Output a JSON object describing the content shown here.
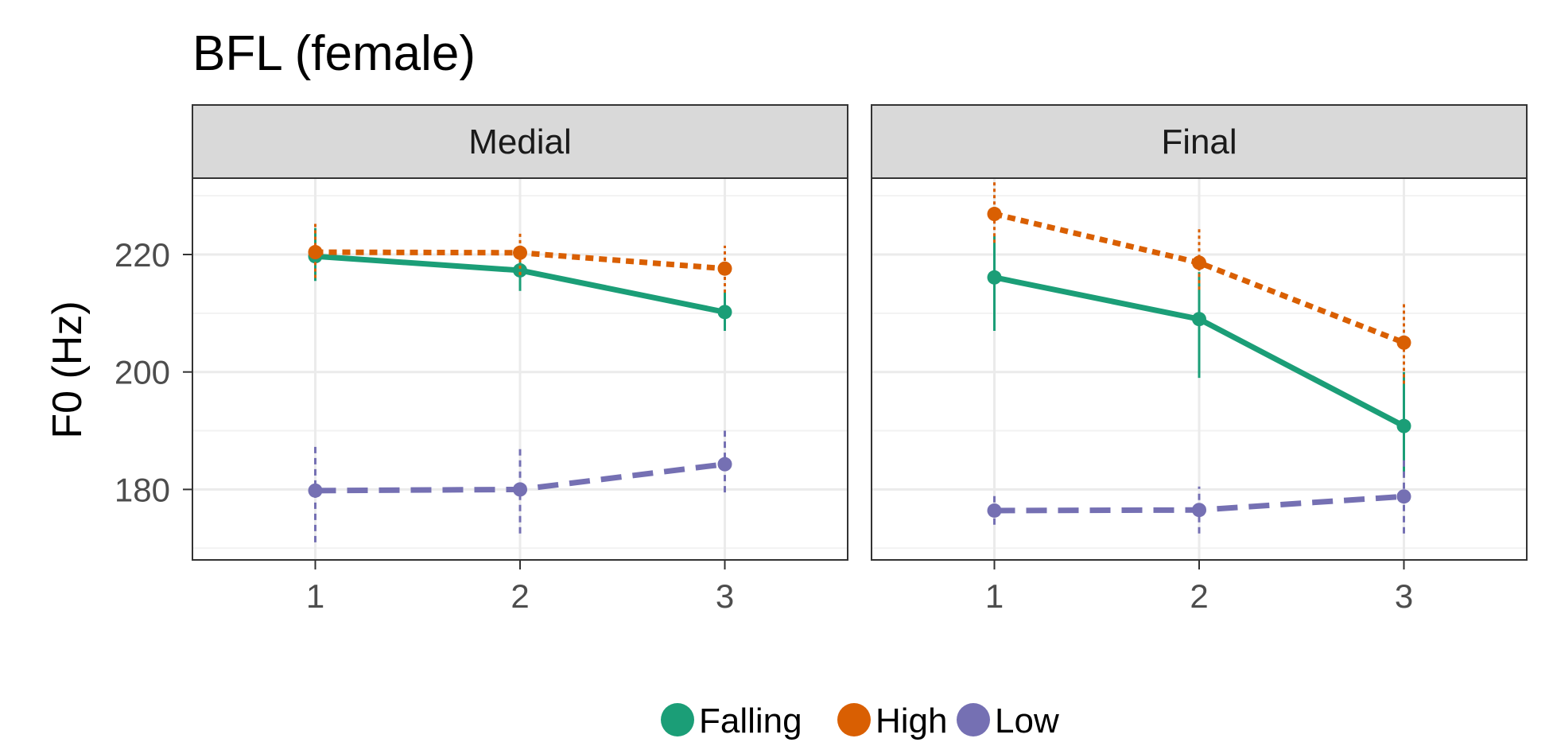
{
  "chart_data": {
    "type": "line",
    "title": "BFL (female)",
    "xlabel": "",
    "ylabel": "F0 (Hz)",
    "x": [
      1,
      2,
      3
    ],
    "x_tick_labels": [
      "1",
      "2",
      "3"
    ],
    "xlim": [
      0.4,
      3.6
    ],
    "ylim": [
      168,
      233
    ],
    "y_ticks": [
      180,
      200,
      220
    ],
    "y_tick_labels": [
      "180",
      "200",
      "220"
    ],
    "grid": true,
    "legend_position": "bottom",
    "series_meta": [
      {
        "name": "Falling",
        "color": "#1b9e77",
        "dash": "solid"
      },
      {
        "name": "High",
        "color": "#d95f02",
        "dash": "dotted"
      },
      {
        "name": "Low",
        "color": "#7570b3",
        "dash": "dashed"
      }
    ],
    "panels": [
      {
        "name": "Medial",
        "series": [
          {
            "name": "Falling",
            "values": [
              219.7,
              217.3,
              210.2
            ],
            "err_low": [
              215.5,
              213.8,
              207.0
            ],
            "err_high": [
              224.5,
              221.0,
              213.5
            ]
          },
          {
            "name": "High",
            "values": [
              220.4,
              220.3,
              217.6
            ],
            "err_low": [
              216.0,
              216.5,
              213.5
            ],
            "err_high": [
              225.5,
              224.0,
              221.5
            ]
          },
          {
            "name": "Low",
            "values": [
              179.8,
              180.0,
              184.3
            ],
            "err_low": [
              171.0,
              172.5,
              179.5
            ],
            "err_high": [
              187.5,
              187.5,
              190.0
            ]
          }
        ]
      },
      {
        "name": "Final",
        "series": [
          {
            "name": "Falling",
            "values": [
              216.1,
              209.0,
              190.8
            ],
            "err_low": [
              207.0,
              199.0,
              182.0
            ],
            "err_high": [
              223.5,
              217.0,
              200.0
            ]
          },
          {
            "name": "High",
            "values": [
              226.9,
              218.6,
              205.0
            ],
            "err_low": [
              222.0,
              214.0,
              198.0
            ],
            "err_high": [
              232.5,
              224.5,
              212.0
            ]
          },
          {
            "name": "Low",
            "values": [
              176.4,
              176.5,
              178.8
            ],
            "err_low": [
              174.0,
              172.5,
              172.5
            ],
            "err_high": [
              179.0,
              180.5,
              185.0
            ]
          }
        ]
      }
    ]
  }
}
